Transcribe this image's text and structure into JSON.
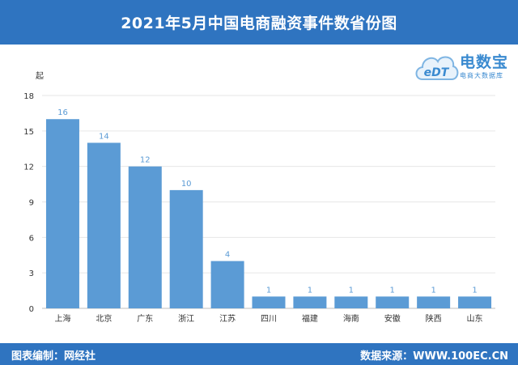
{
  "header": {
    "title": "2021年5月中国电商融资事件数省份图"
  },
  "logo": {
    "badge": "eDT",
    "brand": "电数宝",
    "tagline": "电商大数据库"
  },
  "footer": {
    "left": "图表编制：网经社",
    "right": "数据来源：WWW.100EC.CN"
  },
  "colors": {
    "bar": "#5b9bd5",
    "label": "#5b9bd5",
    "header": "#2f74c0"
  },
  "chart_data": {
    "type": "bar",
    "title": "2021年5月中国电商融资事件数省份图",
    "xlabel": "",
    "ylabel": "起",
    "ylim": [
      0,
      18
    ],
    "yticks": [
      0,
      3,
      6,
      9,
      12,
      15,
      18
    ],
    "grid": true,
    "categories": [
      "上海",
      "北京",
      "广东",
      "浙江",
      "江苏",
      "四川",
      "福建",
      "海南",
      "安徽",
      "陕西",
      "山东"
    ],
    "values": [
      16,
      14,
      12,
      10,
      4,
      1,
      1,
      1,
      1,
      1,
      1
    ]
  }
}
